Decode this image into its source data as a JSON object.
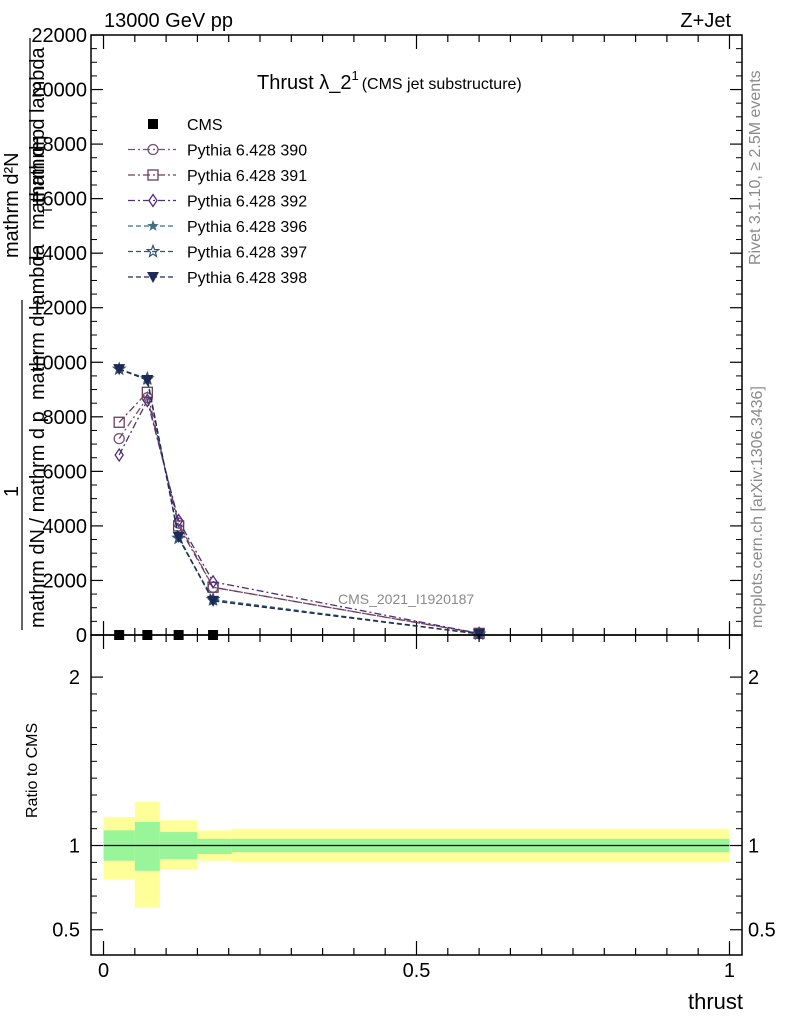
{
  "header": {
    "left": "13000 GeV pp",
    "right": "Z+Jet"
  },
  "side_text": {
    "rivet": "Rivet 3.1.10, ≥ 2.5M events",
    "mcplots": "mcplots.cern.ch [arXiv:1306.3436]"
  },
  "chart_data": [
    {
      "type": "line",
      "title_main": "Thrust λ_2",
      "title_sup": "1",
      "title_sub": "(CMS jet substructure)",
      "watermark": "CMS_2021_I1920187",
      "ylabel_frac_num": "1",
      "ylabel_frac_den": "mathrm dN / mathrm d p",
      "ylabel_frac_den2": "mathrm d lambda",
      "ylabel_numerator": "mathrm d²N",
      "ylabel_den_a": "mathrm d p",
      "ylabel_den_sub": "T",
      "ylabel_den_b": "mathrm d lambda",
      "ylim": [
        0,
        22000
      ],
      "yticks": [
        0,
        2000,
        4000,
        6000,
        8000,
        10000,
        12000,
        14000,
        16000,
        18000,
        20000,
        22000
      ],
      "ytick_labels": [
        "0",
        "2000",
        "4000",
        "6000",
        "8000",
        "10000",
        "12000",
        "14000",
        "16000",
        "18000",
        "20000",
        "22000"
      ],
      "xlim": [
        -0.02,
        1.02
      ],
      "legend_position": "top-left",
      "series": [
        {
          "name": "CMS",
          "marker": "filled-square",
          "color": "#000000",
          "x": [
            0.025,
            0.07,
            0.12,
            0.175
          ],
          "y": [
            0,
            0,
            0,
            0
          ]
        },
        {
          "name": "Pythia 6.428 390",
          "marker": "open-circle",
          "color": "#7a4f78",
          "x": [
            0.025,
            0.07,
            0.12,
            0.175,
            0.6
          ],
          "y": [
            7200,
            8700,
            4100,
            1750,
            60
          ]
        },
        {
          "name": "Pythia 6.428 391",
          "marker": "open-square",
          "color": "#6e3d55",
          "x": [
            0.025,
            0.07,
            0.12,
            0.175,
            0.6
          ],
          "y": [
            7800,
            8900,
            4000,
            1750,
            60
          ]
        },
        {
          "name": "Pythia 6.428 392",
          "marker": "open-diamond",
          "color": "#4d2f7a",
          "x": [
            0.025,
            0.07,
            0.12,
            0.175,
            0.6
          ],
          "y": [
            6600,
            8600,
            4200,
            1950,
            60
          ]
        },
        {
          "name": "Pythia 6.428 396",
          "marker": "filled-star",
          "color": "#3f6f85",
          "x": [
            0.025,
            0.07,
            0.12,
            0.175,
            0.6
          ],
          "y": [
            9750,
            9350,
            3550,
            1250,
            40
          ]
        },
        {
          "name": "Pythia 6.428 397",
          "marker": "open-star",
          "color": "#2f5573",
          "x": [
            0.025,
            0.07,
            0.12,
            0.175,
            0.6
          ],
          "y": [
            9750,
            9400,
            3550,
            1300,
            40
          ]
        },
        {
          "name": "Pythia 6.428 398",
          "marker": "filled-triangle-down",
          "color": "#1e2a55",
          "x": [
            0.025,
            0.07,
            0.12,
            0.175,
            0.6
          ],
          "y": [
            9750,
            9350,
            3600,
            1250,
            40
          ]
        }
      ]
    },
    {
      "type": "area",
      "ylabel": "Ratio to CMS",
      "xlabel": "thrust",
      "ylim": [
        0.35,
        2.25
      ],
      "yticks": [
        0.5,
        1,
        2
      ],
      "ytick_labels": [
        "0.5",
        "1",
        "2"
      ],
      "xlim": [
        -0.02,
        1.02
      ],
      "xticks": [
        0,
        0.5,
        1
      ],
      "xtick_labels": [
        "0",
        "0.5",
        "1"
      ],
      "reference": 1,
      "band_colors": {
        "inner": "#99f599",
        "outer": "#ffff99"
      },
      "bins": [
        {
          "x0": 0.0,
          "x1": 0.05,
          "inner": [
            0.91,
            1.09
          ],
          "outer": [
            0.8,
            1.17
          ]
        },
        {
          "x0": 0.05,
          "x1": 0.09,
          "inner": [
            0.85,
            1.14
          ],
          "outer": [
            0.63,
            1.26
          ]
        },
        {
          "x0": 0.09,
          "x1": 0.15,
          "inner": [
            0.92,
            1.08
          ],
          "outer": [
            0.86,
            1.15
          ]
        },
        {
          "x0": 0.15,
          "x1": 0.205,
          "inner": [
            0.95,
            1.04
          ],
          "outer": [
            0.91,
            1.09
          ]
        },
        {
          "x0": 0.205,
          "x1": 1.0,
          "inner": [
            0.96,
            1.04
          ],
          "outer": [
            0.9,
            1.1
          ]
        }
      ]
    }
  ]
}
